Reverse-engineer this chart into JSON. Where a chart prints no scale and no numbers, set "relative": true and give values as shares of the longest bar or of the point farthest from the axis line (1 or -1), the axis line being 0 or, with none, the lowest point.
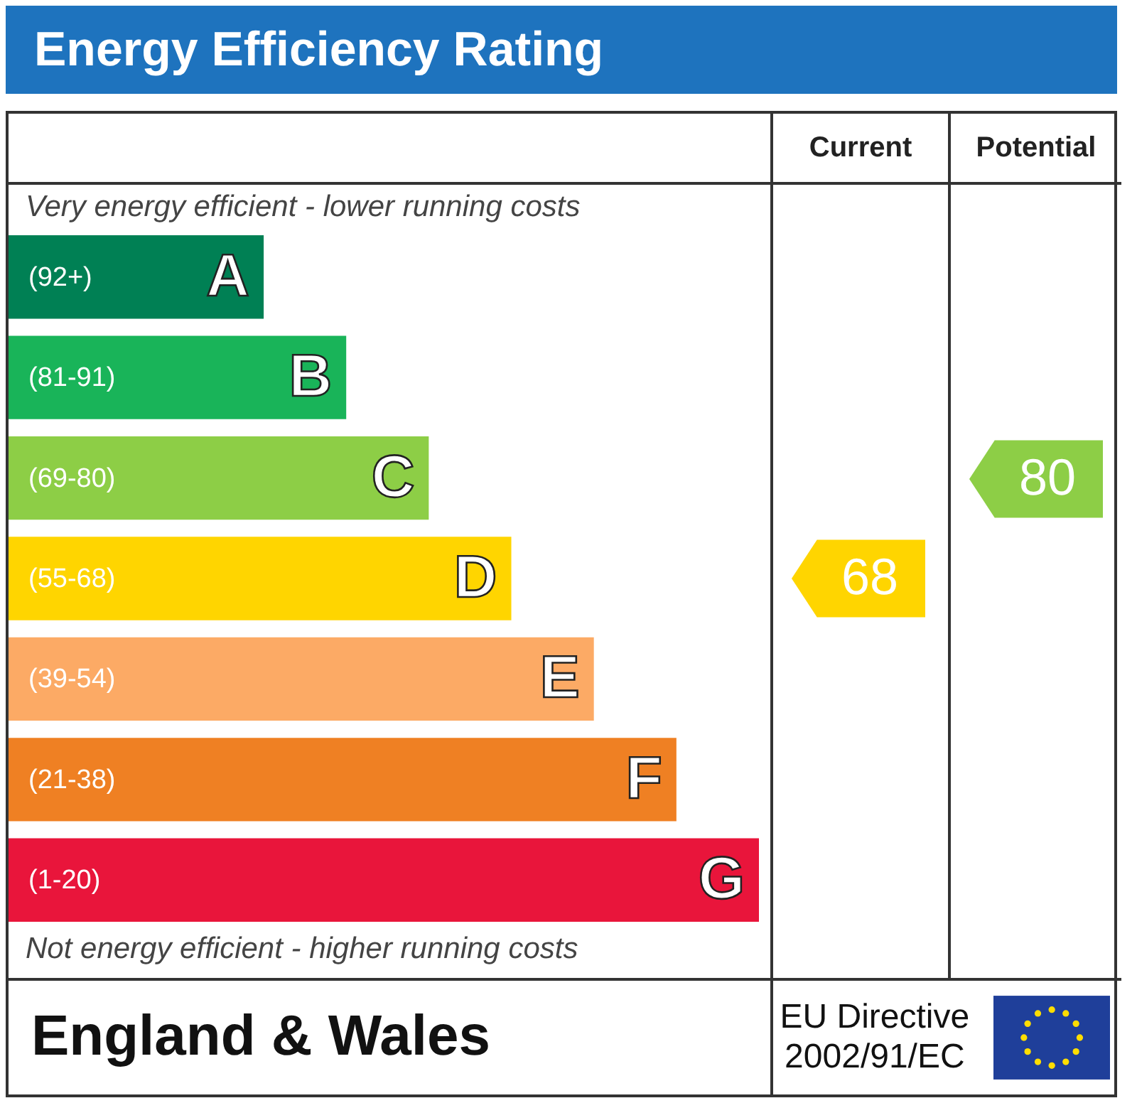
{
  "chart_data": [
    {
      "type": "bar",
      "orientation": "horizontal",
      "relative": true,
      "title": "Energy Efficiency Rating",
      "categories": [
        "A",
        "B",
        "C",
        "D",
        "E",
        "F",
        "G"
      ],
      "values": [
        0.34,
        0.45,
        0.56,
        0.67,
        0.78,
        0.89,
        1.0
      ],
      "colors": [
        "#008054",
        "#19b459",
        "#8dce46",
        "#ffd500",
        "#fcaa65",
        "#ef8023",
        "#e9153b"
      ],
      "annotations": [
        "Very energy efficient - lower running costs",
        "Not energy efficient - higher running costs",
        "England & Wales",
        "EU Directive 2002/91/EC",
        "(92+)",
        "(81-91)",
        "(69-80)",
        "(55-68)",
        "(39-54)",
        "(21-38)",
        "(1-20)"
      ]
    },
    {
      "type": "other",
      "title": "Current",
      "annotations": [
        {
          "text": "68",
          "y": "D"
        }
      ]
    },
    {
      "type": "other",
      "title": "Potential",
      "annotations": [
        {
          "text": "80",
          "y": "C"
        }
      ]
    }
  ]
}
